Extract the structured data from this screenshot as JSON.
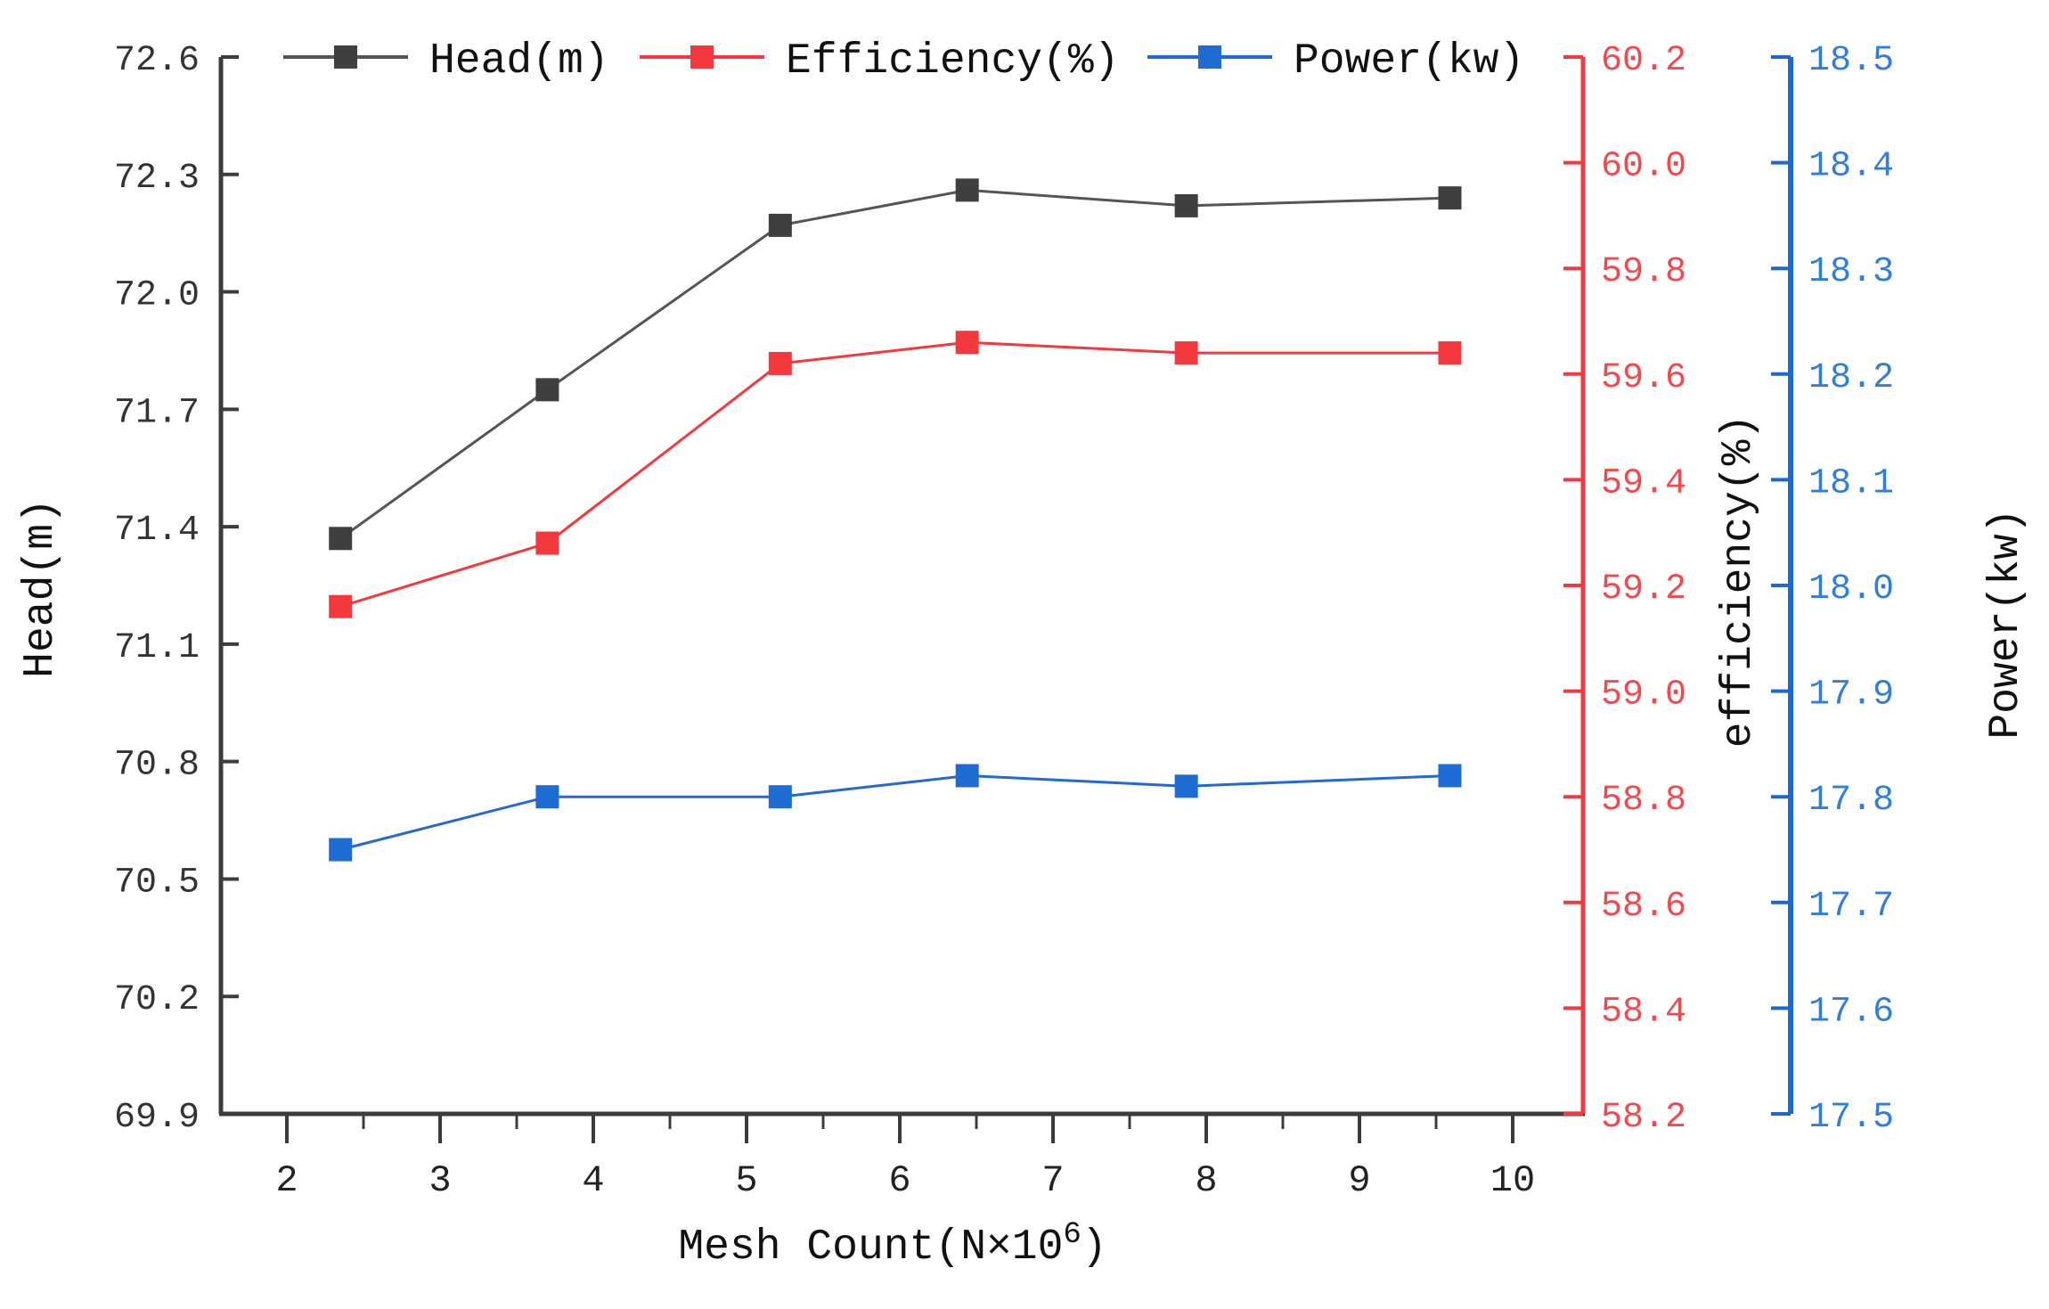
{
  "figure": {
    "background": "#ffffff",
    "title": ""
  },
  "chart_data": {
    "type": "line",
    "title": "",
    "x": [
      2.35,
      3.7,
      5.22,
      6.44,
      7.87,
      9.59
    ],
    "xlabel": "Mesh Count(N×10⁶)",
    "xlabel_parts": {
      "prefix": "Mesh Count(N×10",
      "superscript": "6",
      "suffix": ")"
    },
    "x_ticks": [
      2,
      3,
      4,
      5,
      6,
      7,
      8,
      9,
      10
    ],
    "x_minor_ticks": [
      2.5,
      3.5,
      4.5,
      5.5,
      6.5,
      7.5,
      8.5,
      9.5
    ],
    "grid": false,
    "legend": {
      "position": "top",
      "entries": [
        "Head(m)",
        "Efficiency(%)",
        "Power(kw)"
      ]
    },
    "series": [
      {
        "name": "Head(m)",
        "yaxis": "left",
        "marker": "square",
        "marker_color": "#3f3f3f",
        "line_color": "#555555",
        "values": [
          71.37,
          71.75,
          72.17,
          72.26,
          72.22,
          72.24
        ]
      },
      {
        "name": "Efficiency(%)",
        "yaxis": "right1",
        "marker": "square",
        "marker_color": "#f4393e",
        "line_color": "#f4393e",
        "values": [
          59.16,
          59.28,
          59.62,
          59.66,
          59.64,
          59.64
        ]
      },
      {
        "name": "Power(kw)",
        "yaxis": "right2",
        "marker": "square",
        "marker_color": "#1e6bd4",
        "line_color": "#2369d3",
        "values": [
          17.75,
          17.8,
          17.8,
          17.82,
          17.81,
          17.82
        ]
      }
    ],
    "axes": {
      "bottom": {
        "title": "Mesh Count(N×10⁶)",
        "min": 1.57,
        "max": 10.46,
        "axis_color": "#3c3c3c",
        "label_color": "#222222",
        "title_color": "#111111"
      },
      "left": {
        "title": "Head(m)",
        "min": 69.9,
        "max": 72.6,
        "tick_step": 0.3,
        "decimals": 1,
        "ticks": [
          72.6,
          72.3,
          72.0,
          71.7,
          71.4,
          71.1,
          70.8,
          70.5,
          70.2,
          69.9
        ],
        "axis_color": "#3c3c3c",
        "label_color": "#333333",
        "title_color": "#111111"
      },
      "right1": {
        "title": "efficiency(%)",
        "min": 58.2,
        "max": 60.2,
        "tick_step": 0.2,
        "decimals": 1,
        "ticks": [
          60.2,
          60.0,
          59.8,
          59.6,
          59.4,
          59.2,
          59.0,
          58.8,
          58.6,
          58.4,
          58.2
        ],
        "axis_color": "#f4393e",
        "label_color": "#f5484d",
        "title_color": "#111111"
      },
      "right2": {
        "title": "Power(kw)",
        "min": 17.5,
        "max": 18.5,
        "tick_step": 0.1,
        "decimals": 1,
        "ticks": [
          18.5,
          18.4,
          18.3,
          18.2,
          18.1,
          18.0,
          17.9,
          17.8,
          17.7,
          17.6,
          17.5
        ],
        "axis_color": "#1c67d2",
        "label_color": "#2f7de2",
        "title_color": "#111111"
      }
    }
  }
}
